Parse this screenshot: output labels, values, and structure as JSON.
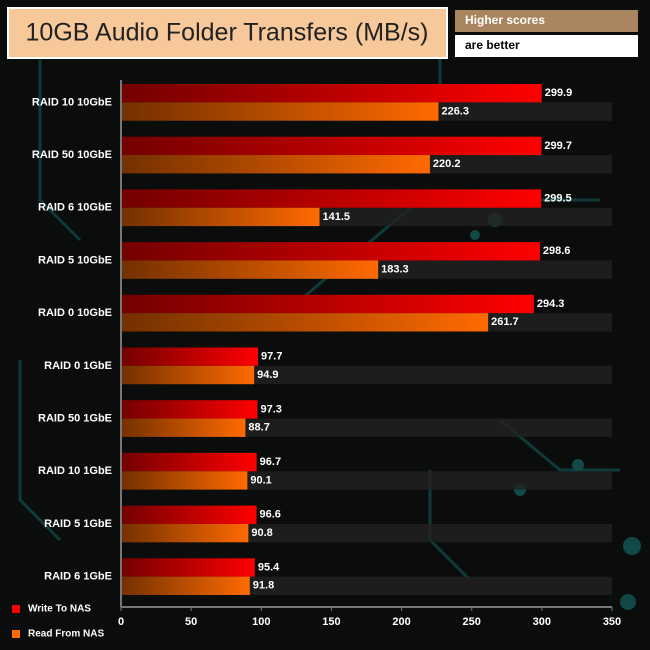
{
  "chart_data": {
    "type": "hbar",
    "title": "10GB Audio Folder Transfers (MB/s)",
    "badge": [
      "Higher scores",
      "are better"
    ],
    "categories": [
      "RAID 10 10GbE",
      "RAID 50 10GbE",
      "RAID 6 10GbE",
      "RAID 5 10GbE",
      "RAID 0 10GbE",
      "RAID 0 1GbE",
      "RAID 50 1GbE",
      "RAID 10 1GbE",
      "RAID 5 1GbE",
      "RAID 6 1GbE"
    ],
    "series": [
      {
        "name": "Write To NAS",
        "color": "#ff0000",
        "values": [
          299.9,
          299.7,
          299.5,
          298.6,
          294.3,
          97.7,
          97.3,
          96.7,
          96.6,
          95.4
        ]
      },
      {
        "name": "Read From NAS",
        "color": "#ff6a00",
        "values": [
          226.3,
          220.2,
          141.5,
          183.3,
          261.7,
          94.9,
          88.7,
          90.1,
          90.8,
          91.8
        ]
      }
    ],
    "xlim": [
      0,
      350
    ],
    "xticks": [
      0,
      50,
      100,
      150,
      200,
      250,
      300,
      350
    ],
    "legend": "bottom-left"
  }
}
